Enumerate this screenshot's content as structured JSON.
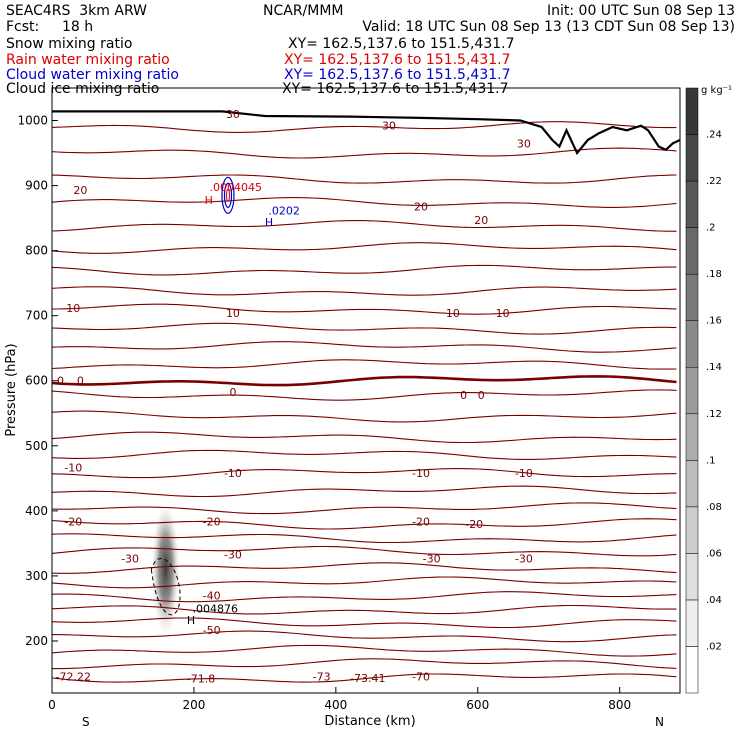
{
  "header": {
    "model": "SEAC4RS  3km ARW",
    "org": "NCAR/MMM",
    "init": "Init: 00 UTC Sun 08 Sep 13",
    "fcst_label": "Fcst:",
    "fcst_value": "18 h",
    "valid": "Valid: 18 UTC Sun 08 Sep 13 (13 CDT Sun 08 Sep 13)"
  },
  "fields": [
    {
      "name": "Snow mixing ratio",
      "xy": "XY= 162.5,137.6 to 151.5,431.7",
      "color": "#000000"
    },
    {
      "name": "Rain water mixing ratio",
      "xy": "XY= 162.5,137.6 to 151.5,431.7",
      "color": "#dd0000"
    },
    {
      "name": "Cloud water mixing ratio",
      "xy": "XY= 162.5,137.6 to 151.5,431.7",
      "color": "#0000cc"
    },
    {
      "name": "Cloud ice mixing ratio",
      "xy": "XY= 162.5,137.6 to 151.5,431.7",
      "color": "#000000"
    }
  ],
  "chart_data": {
    "type": "cross-section",
    "xlabel": "Distance (km)",
    "ylabel": "Pressure (hPa)",
    "xlim": [
      0,
      885
    ],
    "ylim": [
      1050,
      120
    ],
    "x_ticks": [
      0,
      200,
      400,
      600,
      800
    ],
    "y_ticks": [
      200,
      300,
      400,
      500,
      600,
      700,
      800,
      900,
      1000
    ],
    "x_end_labels": {
      "left": "S",
      "right": "N"
    },
    "colorbar": {
      "unit": "g kg⁻¹",
      "ticks": [
        ".02",
        ".04",
        ".06",
        ".08",
        ".1",
        ".12",
        ".14",
        ".16",
        ".18",
        ".2",
        ".22",
        ".24"
      ],
      "tick_values": [
        0.02,
        0.04,
        0.06,
        0.08,
        0.1,
        0.12,
        0.14,
        0.16,
        0.18,
        0.2,
        0.22,
        0.24
      ],
      "max": 0.26
    },
    "temperature_contours_C": {
      "color": "#7a0000",
      "pressures_hPa": [
        143,
        165,
        185,
        207,
        228,
        248,
        268,
        290,
        312,
        338,
        358,
        380,
        404,
        430,
        458,
        486,
        513,
        545,
        578,
        600,
        625,
        652,
        680,
        710,
        738,
        770,
        804,
        838,
        874,
        910,
        950,
        990
      ],
      "labels": [
        {
          "text": "-72.22",
          "x": 30,
          "p": 145
        },
        {
          "text": "-71.8",
          "x": 210,
          "p": 142
        },
        {
          "text": "-73",
          "x": 380,
          "p": 145
        },
        {
          "text": "-73.41",
          "x": 445,
          "p": 143
        },
        {
          "text": "-70",
          "x": 520,
          "p": 145
        },
        {
          "text": "-50",
          "x": 225,
          "p": 217
        },
        {
          "text": "-40",
          "x": 225,
          "p": 270
        },
        {
          "text": "-30",
          "x": 110,
          "p": 327
        },
        {
          "text": "-30",
          "x": 255,
          "p": 333
        },
        {
          "text": "-30",
          "x": 535,
          "p": 327
        },
        {
          "text": "-30",
          "x": 665,
          "p": 327
        },
        {
          "text": "-20",
          "x": 30,
          "p": 384
        },
        {
          "text": "-20",
          "x": 225,
          "p": 384
        },
        {
          "text": "-20",
          "x": 520,
          "p": 384
        },
        {
          "text": "-20",
          "x": 595,
          "p": 380
        },
        {
          "text": "-10",
          "x": 30,
          "p": 467
        },
        {
          "text": "-10",
          "x": 255,
          "p": 458
        },
        {
          "text": "-10",
          "x": 520,
          "p": 458
        },
        {
          "text": "-10",
          "x": 665,
          "p": 458
        },
        {
          "text": "0",
          "x": 12,
          "p": 600
        },
        {
          "text": "0",
          "x": 40,
          "p": 600
        },
        {
          "text": "0",
          "x": 255,
          "p": 583
        },
        {
          "text": "0",
          "x": 580,
          "p": 578
        },
        {
          "text": "0",
          "x": 605,
          "p": 578
        },
        {
          "text": "10",
          "x": 30,
          "p": 712
        },
        {
          "text": "10",
          "x": 255,
          "p": 704
        },
        {
          "text": "10",
          "x": 565,
          "p": 704
        },
        {
          "text": "10",
          "x": 635,
          "p": 704
        },
        {
          "text": "20",
          "x": 40,
          "p": 893
        },
        {
          "text": "20",
          "x": 520,
          "p": 868
        },
        {
          "text": "20",
          "x": 605,
          "p": 847
        },
        {
          "text": "30",
          "x": 255,
          "p": 1010
        },
        {
          "text": "30",
          "x": 475,
          "p": 992
        },
        {
          "text": "30",
          "x": 665,
          "p": 965
        }
      ]
    },
    "annotations": [
      {
        "text": "H",
        "x": 190,
        "p": 232,
        "color": "#000000"
      },
      {
        "text": ".004876",
        "x": 198,
        "p": 250,
        "color": "#000000"
      },
      {
        "text": "H",
        "x": 215,
        "p": 878,
        "color": "#dd0000"
      },
      {
        "text": ".0004045",
        "x": 222,
        "p": 898,
        "color": "#dd0000"
      },
      {
        "text": "H",
        "x": 300,
        "p": 844,
        "color": "#0000cc"
      },
      {
        "text": ".0202",
        "x": 305,
        "p": 862,
        "color": "#0000cc"
      }
    ],
    "snow_max_g_kg": 0.26,
    "cloud_ice_max": 0.004876,
    "rain_max": 0.0004045,
    "cloud_water_max": 0.0202
  }
}
